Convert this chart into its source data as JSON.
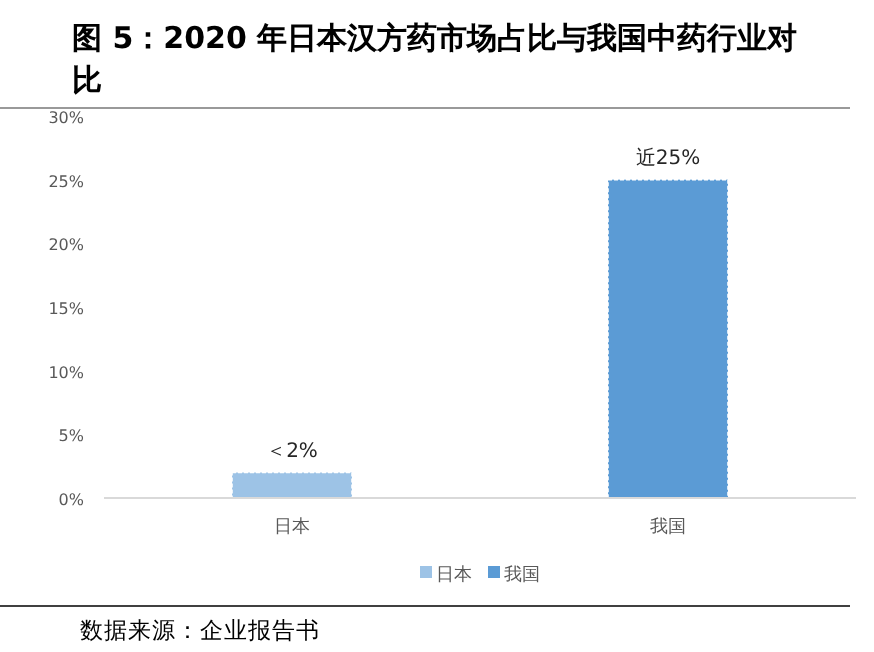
{
  "chart_data": {
    "type": "bar",
    "title": "图 5：2020 年日本汉方药市场占比与我国中药行业对比",
    "categories": [
      "日本",
      "我国"
    ],
    "series": [
      {
        "name": "日本",
        "color": "#9dc3e6",
        "values": [
          2,
          null
        ],
        "value_labels": [
          "＜2%",
          null
        ]
      },
      {
        "name": "我国",
        "color": "#5b9bd5",
        "values": [
          null,
          25
        ],
        "value_labels": [
          null,
          "近25%"
        ]
      }
    ],
    "ylim": [
      0,
      30
    ],
    "yticks": [
      {
        "value": 0,
        "label": "0%"
      },
      {
        "value": 5,
        "label": "5%"
      },
      {
        "value": 10,
        "label": "10%"
      },
      {
        "value": 15,
        "label": "15%"
      },
      {
        "value": 20,
        "label": "20%"
      },
      {
        "value": 25,
        "label": "25%"
      },
      {
        "value": 30,
        "label": "30%"
      }
    ],
    "grid": false,
    "legend": "bottom",
    "annotations": [
      "数据来源：企业报告书"
    ]
  }
}
